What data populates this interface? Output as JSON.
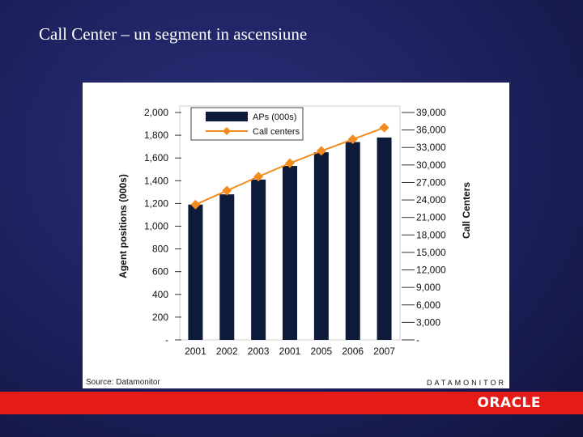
{
  "slide": {
    "title": "Call Center – un segment in ascensiune",
    "source": "Source: Datamonitor",
    "brand": "DATAMONITOR",
    "logo": "ORACLE"
  },
  "colors": {
    "bar": "#0d1a3a",
    "line": "#f28c1e",
    "footer": "#e41b17"
  },
  "chart_data": {
    "type": "bar",
    "categories": [
      "2001",
      "2002",
      "2003",
      "2001",
      "2005",
      "2006",
      "2007"
    ],
    "series": [
      {
        "name": "APs (000s)",
        "type": "bar",
        "axis": "left",
        "values": [
          1190,
          1280,
          1410,
          1530,
          1650,
          1740,
          1780
        ]
      },
      {
        "name": "Call centers",
        "type": "line",
        "axis": "right",
        "values": [
          23200,
          25600,
          28000,
          30300,
          32400,
          34400,
          36400
        ]
      }
    ],
    "ylabel": "Agent positions (000s)",
    "y2label": "Call Centers",
    "ylim": [
      0,
      2000
    ],
    "y2lim": [
      0,
      39000
    ],
    "y_ticks": [
      "-",
      "200",
      "400",
      "600",
      "800",
      "1,000",
      "1,200",
      "1,400",
      "1,600",
      "1,800",
      "2,000"
    ],
    "y2_ticks": [
      "-",
      "3,000",
      "6,000",
      "9,000",
      "12,000",
      "15,000",
      "18,000",
      "21,000",
      "24,000",
      "27,000",
      "30,000",
      "33,000",
      "36,000",
      "39,000"
    ],
    "legend_position": "top-left",
    "grid": false
  }
}
